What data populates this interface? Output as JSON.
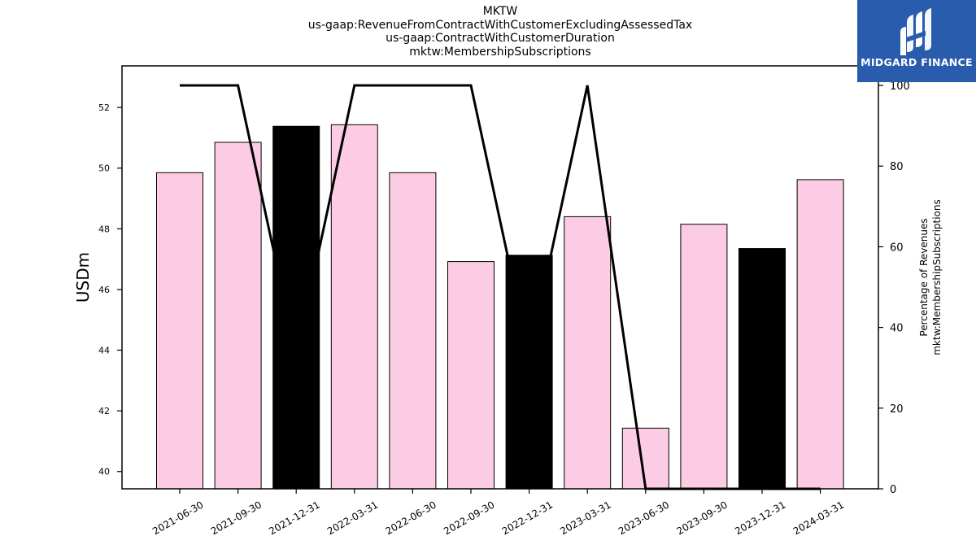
{
  "chart_data": {
    "type": "bar",
    "title_lines": [
      "MKTW",
      "us-gaap:RevenueFromContractWithCustomerExcludingAssessedTax",
      "us-gaap:ContractWithCustomerDuration",
      "mktw:MembershipSubscriptions"
    ],
    "categories": [
      "2021-06-30",
      "2021-09-30",
      "2021-12-31",
      "2022-03-31",
      "2022-06-30",
      "2022-09-30",
      "2022-12-31",
      "2023-03-31",
      "2023-06-30",
      "2023-09-30",
      "2023-12-31",
      "2024-03-31"
    ],
    "series": [
      {
        "axis": "left",
        "kind": "bar",
        "values": [
          49.85,
          50.85,
          51.38,
          51.43,
          49.85,
          46.92,
          47.13,
          48.4,
          41.43,
          48.15,
          47.35,
          49.62
        ],
        "colors": [
          "#fccce5",
          "#fccce5",
          "#000000",
          "#fccce5",
          "#fccce5",
          "#fccce5",
          "#000000",
          "#fccce5",
          "#fccce5",
          "#fccce5",
          "#000000",
          "#fccce5"
        ]
      },
      {
        "axis": "right",
        "kind": "line",
        "values": [
          100,
          100,
          33,
          100,
          100,
          100,
          33,
          100,
          0,
          0,
          0,
          0
        ],
        "color": "#000000"
      }
    ],
    "ylabel": "USDm",
    "ylabel_right": [
      "Percentage of Revenues",
      "mktw:MembershipSubscriptions"
    ],
    "ylim": [
      39.43,
      53.37
    ],
    "ylim_right": [
      0,
      100
    ],
    "yticks": [
      40,
      42,
      44,
      46,
      48,
      50,
      52
    ],
    "yticks_right": [
      0,
      20,
      40,
      60,
      80,
      100
    ],
    "grid": false,
    "legend": "none"
  },
  "logo": {
    "text": "MIDGARD FINANCE"
  }
}
